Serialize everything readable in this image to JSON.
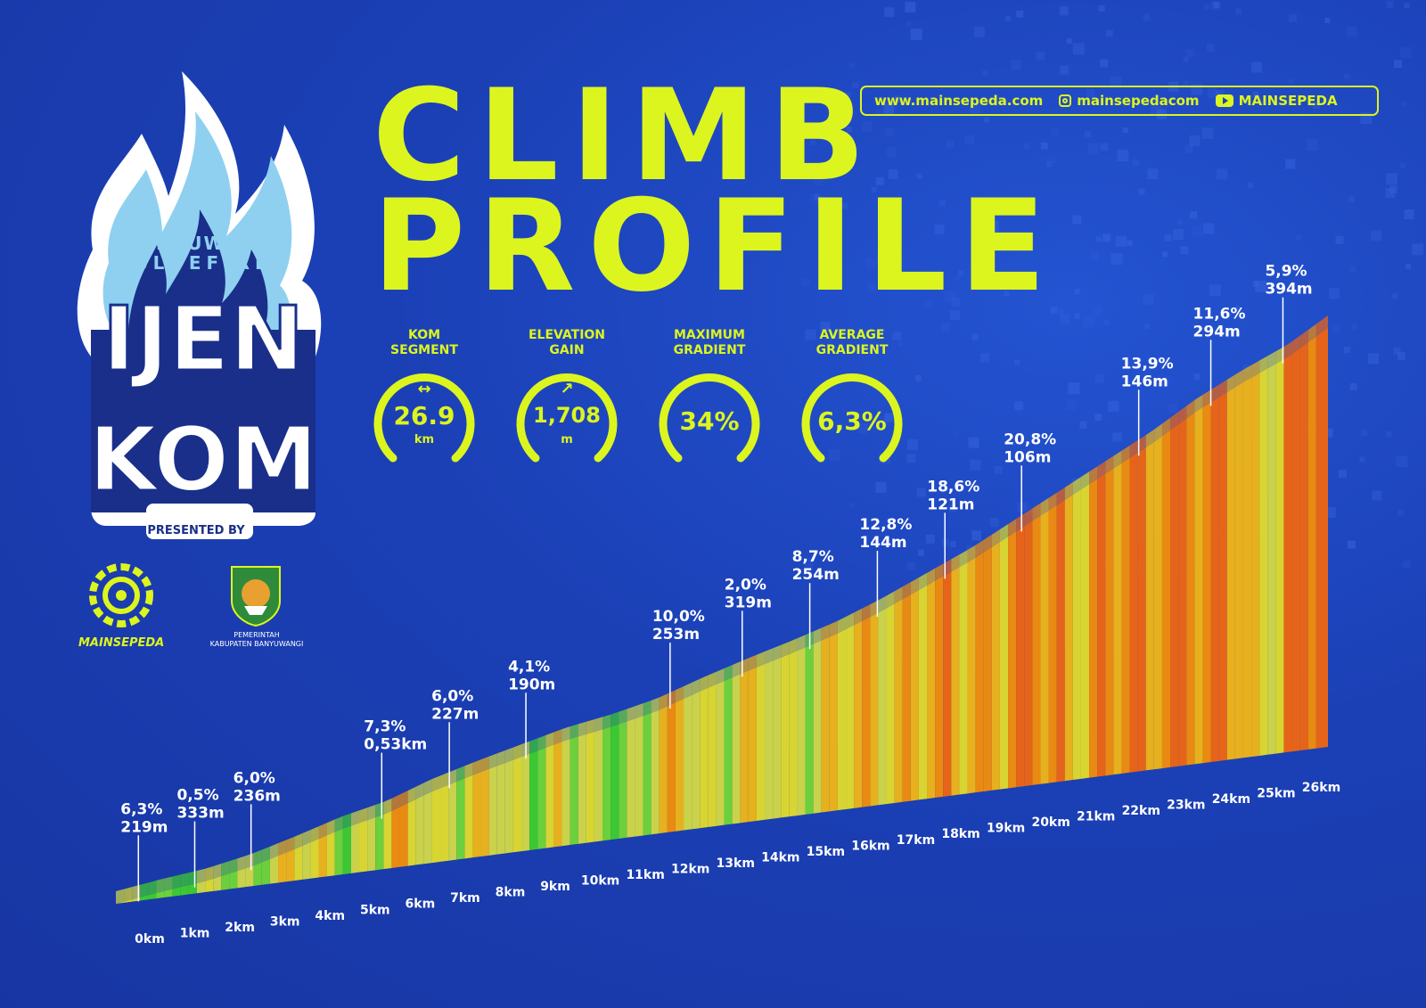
{
  "title": {
    "line1": "CLIMB",
    "line2": "PROFILE"
  },
  "links": {
    "website": "www.mainsepeda.com",
    "instagram": "mainsepedacom",
    "youtube": "MAINSEPEDA",
    "instagram_icon": "instagram-icon",
    "youtube_icon": "youtube-icon"
  },
  "logo": {
    "line1": "BANYUWANGI",
    "line2": "BLUEFIRE",
    "word1": "IJEN",
    "word2": "KOM",
    "presented_by": "PRESENTED BY"
  },
  "sponsors": {
    "mainsepeda": "MAINSEPEDA",
    "government_line1": "PEMERINTAH",
    "government_line2": "KABUPATEN BANYUWANGI"
  },
  "stats": [
    {
      "label": "KOM\nSEGMENT",
      "value": "26.9",
      "unit": "km",
      "glyph": "↔",
      "icon": "arrows-horizontal-icon"
    },
    {
      "label": "ELEVATION\nGAIN",
      "value": "1,708",
      "unit": "m",
      "glyph": "↗",
      "icon": "arrow-up-right-icon"
    },
    {
      "label": "MAXIMUM\nGRADIENT",
      "value": "34%",
      "unit": "",
      "glyph": "",
      "icon": ""
    },
    {
      "label": "AVERAGE\nGRADIENT",
      "value": "6,3%",
      "unit": "",
      "glyph": "",
      "icon": ""
    }
  ],
  "colors": {
    "accent": "#dcf51f",
    "background": "#1c3fb3",
    "flame": "#8fd0f0",
    "text_white": "#ffffff"
  },
  "chart_data": {
    "type": "area",
    "title": "CLIMB PROFILE",
    "xlabel": "",
    "ylabel": "",
    "x_unit": "km",
    "x": [
      0,
      1,
      2,
      3,
      4,
      5,
      6,
      7,
      8,
      9,
      10,
      11,
      12,
      13,
      14,
      15,
      16,
      17,
      18,
      19,
      20,
      21,
      22,
      23,
      24,
      25,
      26
    ],
    "x_tick_labels": [
      "0km",
      "1km",
      "2km",
      "3km",
      "4km",
      "5km",
      "6km",
      "7km",
      "8km",
      "9km",
      "10km",
      "11km",
      "12km",
      "13km",
      "14km",
      "15km",
      "16km",
      "17km",
      "18km",
      "19km",
      "20km",
      "21km",
      "22km",
      "23km",
      "24km",
      "25km",
      "26km"
    ],
    "xlim": [
      0,
      26.9
    ],
    "elevation": [
      0,
      25,
      45,
      80,
      130,
      185,
      225,
      290,
      340,
      385,
      430,
      460,
      500,
      560,
      615,
      665,
      720,
      790,
      870,
      950,
      1045,
      1140,
      1235,
      1330,
      1440,
      1530,
      1610,
      1708
    ],
    "elevation_x": [
      0,
      1,
      2,
      3,
      4,
      5,
      6,
      7,
      8,
      9,
      10,
      11,
      12,
      13,
      14,
      15,
      16,
      17,
      18,
      19,
      20,
      21,
      22,
      23,
      24,
      25,
      26,
      26.9
    ],
    "ylim": [
      0,
      1708
    ],
    "gradient_color_scale": [
      "#3cc832",
      "#6ccf3c",
      "#c9d24a",
      "#d8d432",
      "#e6b01e",
      "#e98a12",
      "#e6641a",
      "#d8321c",
      "#c41414"
    ],
    "annotations": [
      {
        "km": 0.5,
        "gradient": "6,3%",
        "length": "219m"
      },
      {
        "km": 1.75,
        "gradient": "0,5%",
        "length": "333m"
      },
      {
        "km": 3.0,
        "gradient": "6,0%",
        "length": "236m"
      },
      {
        "km": 5.9,
        "gradient": "7,3%",
        "length": "0,53km"
      },
      {
        "km": 7.4,
        "gradient": "6,0%",
        "length": "227m"
      },
      {
        "km": 9.1,
        "gradient": "4,1%",
        "length": "190m"
      },
      {
        "km": 12.3,
        "gradient": "10,0%",
        "length": "253m"
      },
      {
        "km": 13.9,
        "gradient": "2,0%",
        "length": "319m"
      },
      {
        "km": 15.4,
        "gradient": "8,7%",
        "length": "254m"
      },
      {
        "km": 16.9,
        "gradient": "12,8%",
        "length": "144m"
      },
      {
        "km": 18.4,
        "gradient": "18,6%",
        "length": "121m"
      },
      {
        "km": 20.1,
        "gradient": "20,8%",
        "length": "106m"
      },
      {
        "km": 22.7,
        "gradient": "13,9%",
        "length": "146m"
      },
      {
        "km": 24.3,
        "gradient": "11,6%",
        "length": "294m"
      },
      {
        "km": 25.9,
        "gradient": "5,9%",
        "length": "394m"
      }
    ],
    "grid": false,
    "legend": "none"
  }
}
